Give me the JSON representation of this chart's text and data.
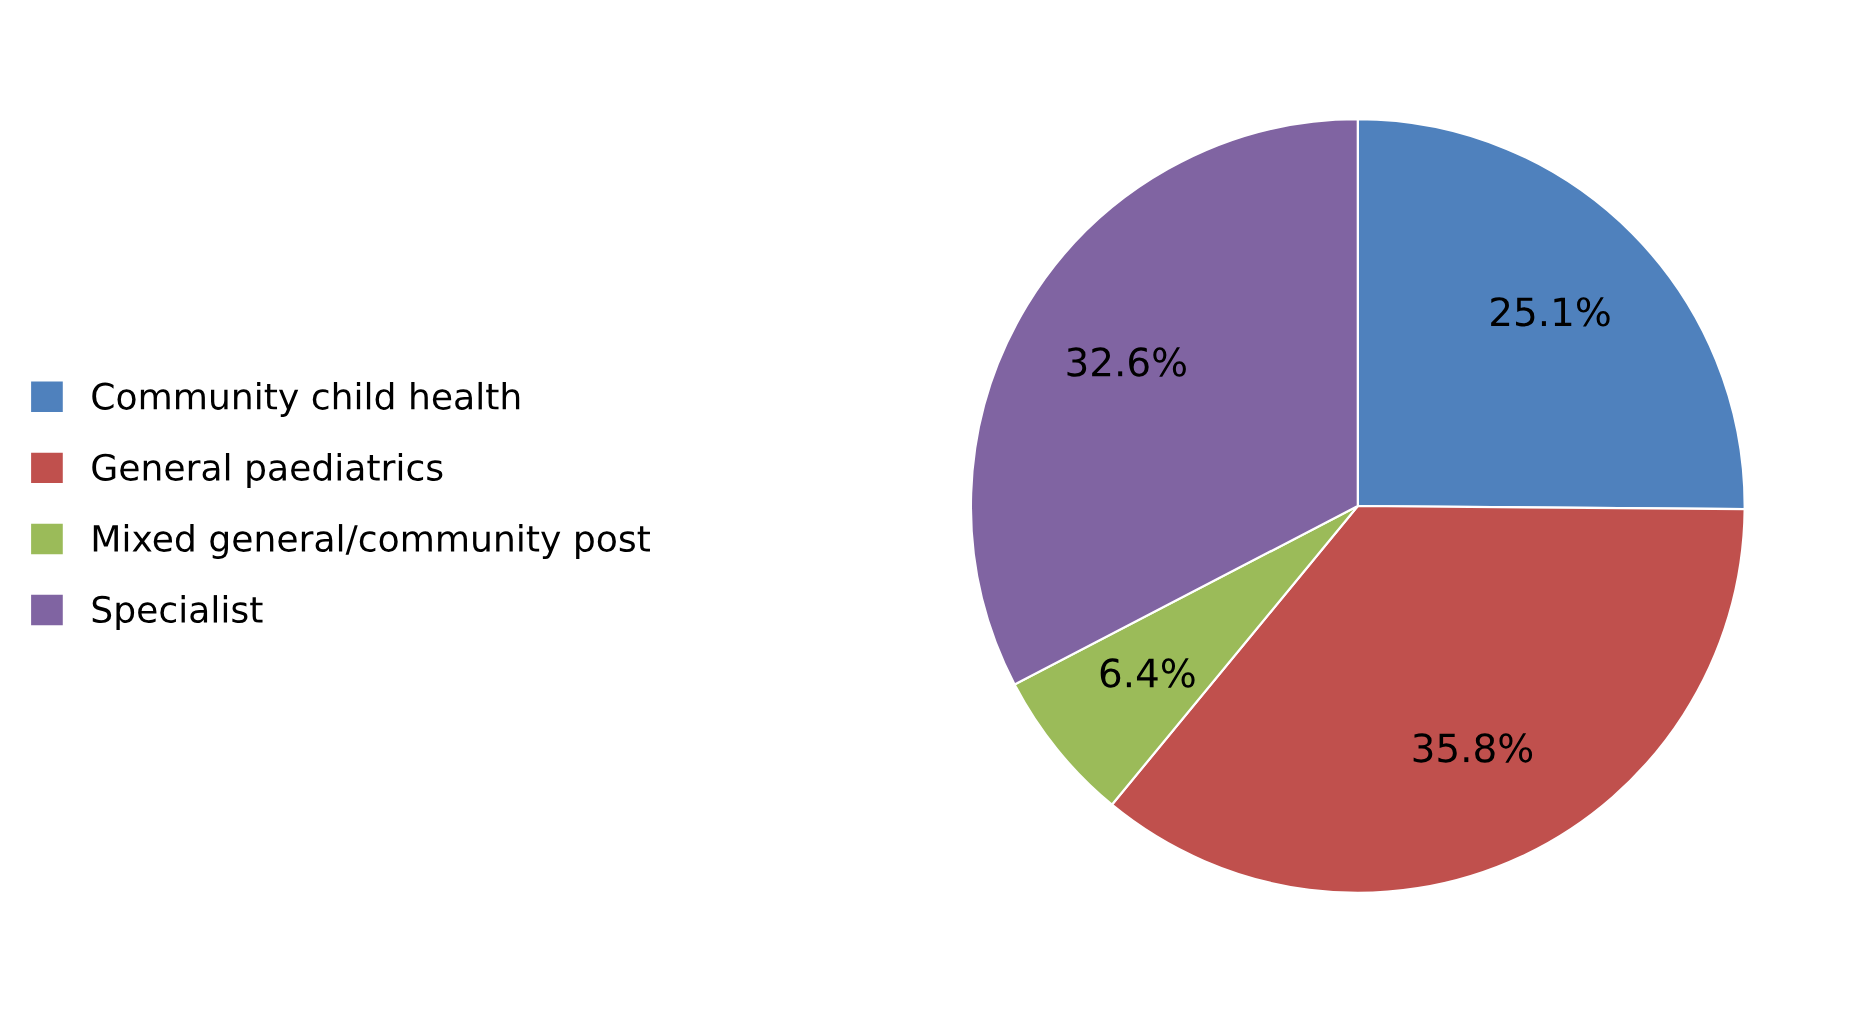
{
  "chart_data": {
    "type": "pie",
    "categories": [
      "Community child health",
      "General paediatrics",
      "Mixed general/community post",
      "Specialist"
    ],
    "values": [
      25.1,
      35.8,
      6.4,
      32.6
    ],
    "colors": [
      "#4f81bd",
      "#c0504d",
      "#9bbb59",
      "#8064a2"
    ],
    "value_labels": [
      "25.1%",
      "35.8%",
      "6.4%",
      "32.6%"
    ],
    "legend": "left"
  }
}
